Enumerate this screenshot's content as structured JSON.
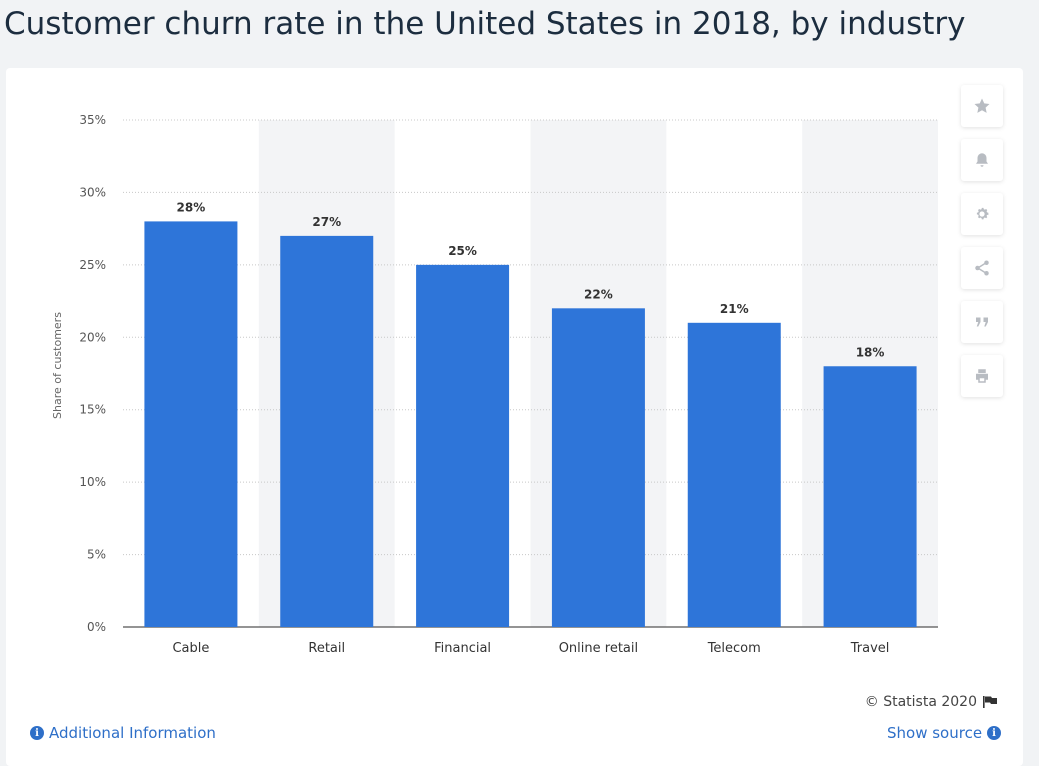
{
  "page": {
    "title": "Customer churn rate in the United States in 2018, by industry"
  },
  "credit": "© Statista 2020",
  "footer": {
    "additional_info": "Additional Information",
    "show_source": "Show source"
  },
  "toolbar": {
    "icons": [
      "star-icon",
      "bell-icon",
      "gear-icon",
      "share-icon",
      "quote-icon",
      "print-icon"
    ]
  },
  "colors": {
    "bar": "#2e75d9",
    "band": "#f3f4f6",
    "grid": "#c8c8c8",
    "accent": "#2e6fc8"
  },
  "chart_data": {
    "type": "bar",
    "title": "",
    "xlabel": "",
    "ylabel": "Share of customers",
    "categories": [
      "Cable",
      "Retail",
      "Financial",
      "Online retail",
      "Telecom",
      "Travel"
    ],
    "values": [
      28,
      27,
      25,
      22,
      21,
      18
    ],
    "data_labels": [
      "28%",
      "27%",
      "25%",
      "22%",
      "21%",
      "18%"
    ],
    "ylim": [
      0,
      35
    ],
    "yticks": [
      0,
      5,
      10,
      15,
      20,
      25,
      30,
      35
    ],
    "ytick_labels": [
      "0%",
      "5%",
      "10%",
      "15%",
      "20%",
      "25%",
      "30%",
      "35%"
    ],
    "grid": true,
    "legend": "none"
  }
}
